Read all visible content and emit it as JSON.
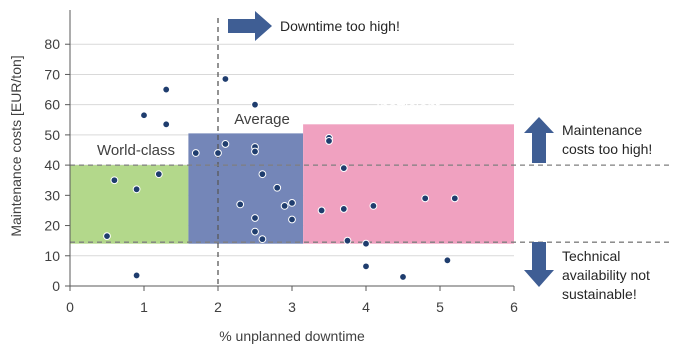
{
  "chart_data": {
    "type": "scatter",
    "xlabel": "% unplanned downtime",
    "ylabel": "Maintenance costs [EUR/ton]",
    "xlim": [
      0,
      6
    ],
    "ylim": [
      0,
      90
    ],
    "x_ticks": [
      "0",
      "1",
      "2",
      "3",
      "4",
      "5",
      "6"
    ],
    "y_ticks": [
      "0",
      "10",
      "20",
      "30",
      "40",
      "50",
      "60",
      "70",
      "80"
    ],
    "grid": true,
    "regions": [
      {
        "label": "World-class",
        "x": [
          0.0,
          1.6
        ],
        "y": [
          14,
          40
        ],
        "color": "#b3d88b",
        "label_color": "#404040"
      },
      {
        "label": "Average",
        "x": [
          1.6,
          3.15
        ],
        "y": [
          14,
          50.5
        ],
        "color": "#7486b8",
        "label_color": "#404040"
      },
      {
        "label": "Inefficient",
        "x": [
          3.15,
          6.0
        ],
        "y": [
          14,
          53.5
        ],
        "color": "#f0a1c0",
        "label_color": "#ffffff"
      }
    ],
    "reference_lines": {
      "x": 2.0,
      "y": [
        40,
        14.5
      ]
    },
    "annotations": {
      "downtime": "Downtime too high!",
      "costs": [
        "Maintenance",
        "costs too high!"
      ],
      "availability": [
        "Technical",
        "availability not",
        "sustainable!"
      ]
    },
    "marker_color": "#1f3d6e",
    "arrow_color": "#3f5e94",
    "points": [
      {
        "x": 0.5,
        "y": 16.5
      },
      {
        "x": 0.6,
        "y": 35
      },
      {
        "x": 0.9,
        "y": 32
      },
      {
        "x": 0.9,
        "y": 3.5
      },
      {
        "x": 1.0,
        "y": 56.5
      },
      {
        "x": 1.2,
        "y": 37
      },
      {
        "x": 1.3,
        "y": 65
      },
      {
        "x": 1.3,
        "y": 53.5
      },
      {
        "x": 1.7,
        "y": 44
      },
      {
        "x": 2.0,
        "y": 44
      },
      {
        "x": 2.1,
        "y": 68.5
      },
      {
        "x": 2.1,
        "y": 47
      },
      {
        "x": 2.3,
        "y": 27
      },
      {
        "x": 2.5,
        "y": 60
      },
      {
        "x": 2.5,
        "y": 46
      },
      {
        "x": 2.5,
        "y": 44.5
      },
      {
        "x": 2.5,
        "y": 22.5
      },
      {
        "x": 2.5,
        "y": 18
      },
      {
        "x": 2.6,
        "y": 37
      },
      {
        "x": 2.6,
        "y": 15.5
      },
      {
        "x": 2.8,
        "y": 32.5
      },
      {
        "x": 2.9,
        "y": 26.5
      },
      {
        "x": 3.0,
        "y": 27.5
      },
      {
        "x": 3.0,
        "y": 22
      },
      {
        "x": 3.4,
        "y": 25
      },
      {
        "x": 3.5,
        "y": 49
      },
      {
        "x": 3.5,
        "y": 48
      },
      {
        "x": 3.7,
        "y": 39
      },
      {
        "x": 3.7,
        "y": 25.5
      },
      {
        "x": 3.75,
        "y": 15
      },
      {
        "x": 4.0,
        "y": 14
      },
      {
        "x": 4.0,
        "y": 6.5
      },
      {
        "x": 4.1,
        "y": 26.5
      },
      {
        "x": 4.5,
        "y": 3
      },
      {
        "x": 4.8,
        "y": 29
      },
      {
        "x": 5.1,
        "y": 8.5
      },
      {
        "x": 5.2,
        "y": 29
      }
    ]
  }
}
